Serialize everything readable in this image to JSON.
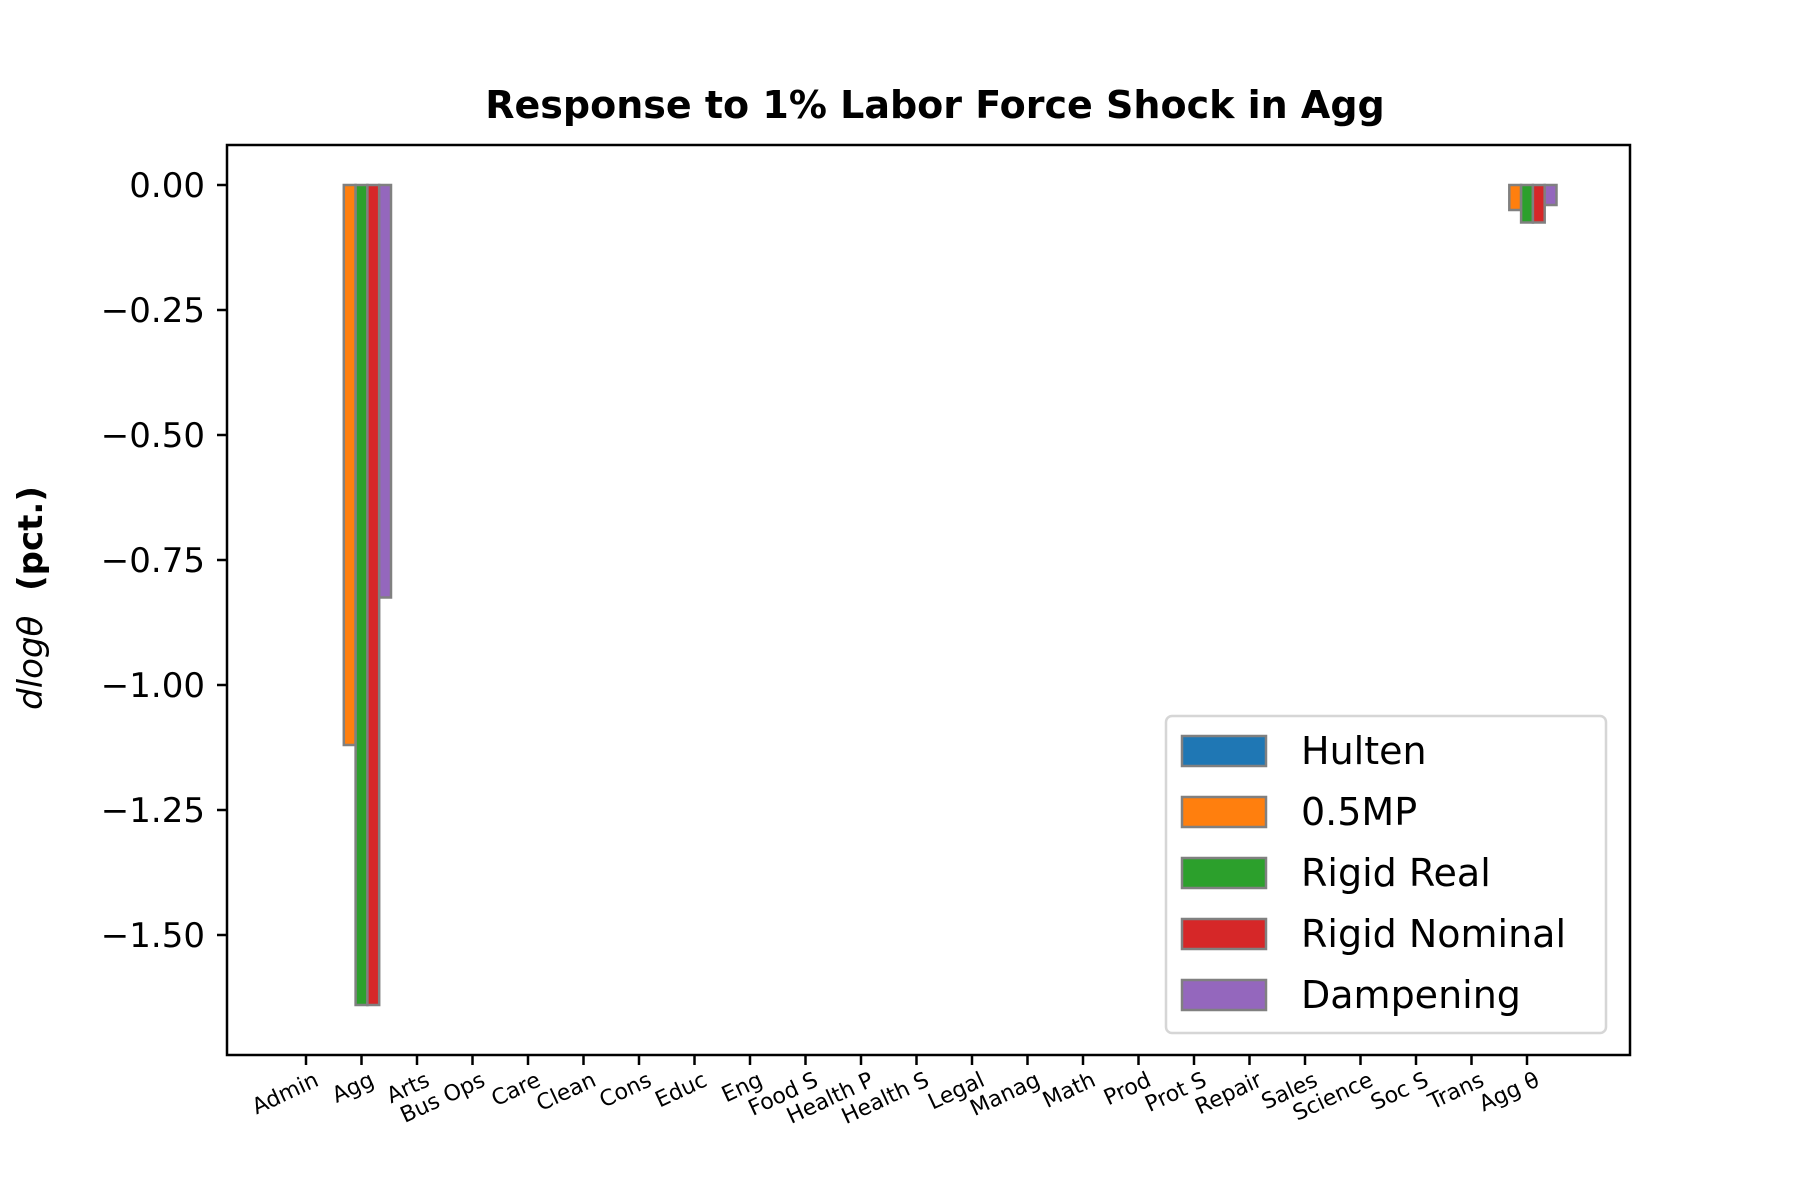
{
  "chart_data": {
    "type": "bar",
    "title": "Response to 1% Labor Force Shock in Agg",
    "ylabel_math": "dlogθ",
    "ylabel_text": "(pct.)",
    "xlabel": "",
    "ylim": [
      -1.74,
      0.08
    ],
    "yticks": [
      0.0,
      -0.25,
      -0.5,
      -0.75,
      -1.0,
      -1.25,
      -1.5
    ],
    "ytick_labels": [
      "0.00",
      "−0.25",
      "−0.50",
      "−0.75",
      "−1.00",
      "−1.25",
      "−1.50"
    ],
    "categories": [
      "Admin",
      "Agg",
      "Arts",
      "Bus Ops",
      "Care",
      "Clean",
      "Cons",
      "Educ",
      "Eng",
      "Food S",
      "Health P",
      "Health S",
      "Legal",
      "Manag",
      "Math",
      "Prod",
      "Prot S",
      "Repair",
      "Sales",
      "Science",
      "Soc S",
      "Trans",
      "Agg θ"
    ],
    "series": [
      {
        "name": "Hulten",
        "color": "#1f77b4",
        "values": [
          0,
          0,
          0,
          0,
          0,
          0,
          0,
          0,
          0,
          0,
          0,
          0,
          0,
          0,
          0,
          0,
          0,
          0,
          0,
          0,
          0,
          0,
          0
        ]
      },
      {
        "name": "0.5MP",
        "color": "#ff7f0e",
        "values": [
          0,
          -1.12,
          0,
          0,
          0,
          0,
          0,
          0,
          0,
          0,
          0,
          0,
          0,
          0,
          0,
          0,
          0,
          0,
          0,
          0,
          0,
          0,
          -0.05
        ]
      },
      {
        "name": "Rigid Real",
        "color": "#2ca02c",
        "values": [
          0,
          -1.64,
          0,
          0,
          0,
          0,
          0,
          0,
          0,
          0,
          0,
          0,
          0,
          0,
          0,
          0,
          0,
          0,
          0,
          0,
          0,
          0,
          -0.075
        ]
      },
      {
        "name": "Rigid Nominal",
        "color": "#d62728",
        "values": [
          0,
          -1.64,
          0,
          0,
          0,
          0,
          0,
          0,
          0,
          0,
          0,
          0,
          0,
          0,
          0,
          0,
          0,
          0,
          0,
          0,
          0,
          0,
          -0.075
        ]
      },
      {
        "name": "Dampening",
        "color": "#9467bd",
        "values": [
          0,
          -0.825,
          0,
          0,
          0,
          0,
          0,
          0,
          0,
          0,
          0,
          0,
          0,
          0,
          0,
          0,
          0,
          0,
          0,
          0,
          0,
          0,
          -0.04
        ]
      }
    ],
    "edge_color": "#808080",
    "grid": false,
    "legend_position": "lower-right"
  }
}
